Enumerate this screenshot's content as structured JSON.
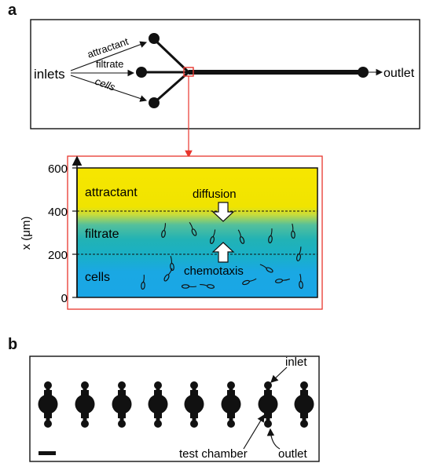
{
  "panel_a": {
    "letter": "a",
    "labels": {
      "inlets": "inlets",
      "outlet": "outlet",
      "attractant": "attractant",
      "filtrate": "filtrate",
      "cells": "cells"
    },
    "inset": {
      "y_axis_label": "x (μm)",
      "y_ticks": [
        "600",
        "400",
        "200",
        "0"
      ],
      "regions": [
        "attractant",
        "filtrate",
        "cells"
      ],
      "arrows": [
        "diffusion",
        "chemotaxis"
      ],
      "colors": {
        "attractant": "#f7e600",
        "filtrate": "#28b6b0",
        "cells": "#1aa8e3",
        "highlight_box": "#e8352d"
      }
    }
  },
  "panel_b": {
    "letter": "b",
    "labels": {
      "inlet": "inlet",
      "test_chamber": "test chamber",
      "outlet": "outlet"
    },
    "unit_count": 8
  }
}
